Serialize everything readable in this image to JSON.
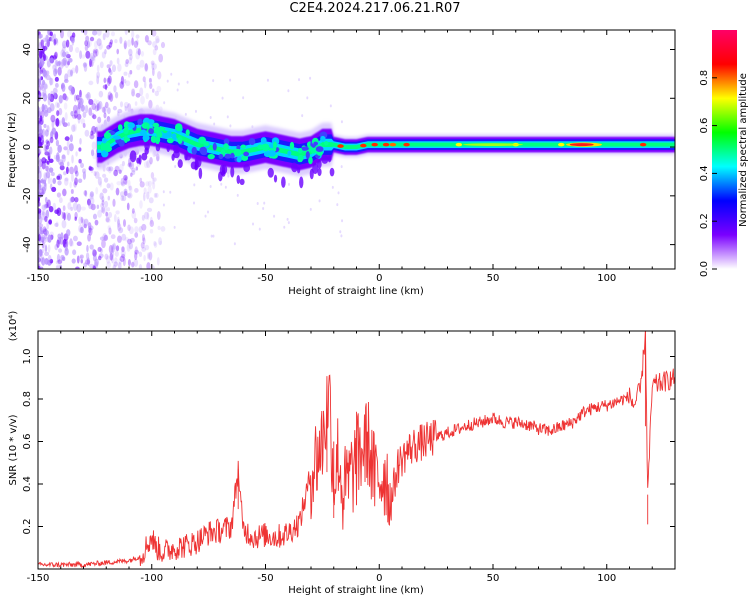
{
  "title": "C2E4.2024.217.06.21.R07",
  "chart_data": [
    {
      "type": "heatmap",
      "xlabel": "Height of straight line (km)",
      "ylabel": "Frequency (Hz)",
      "xlim": [
        -150,
        130
      ],
      "ylim": [
        -50,
        48
      ],
      "x_ticks": [
        "-150",
        "-100",
        "-50",
        "0",
        "50",
        "100"
      ],
      "y_ticks": [
        "40",
        "20",
        "0",
        "-20",
        "-40"
      ],
      "colorbar": {
        "label": "Normalized spectral amplitude",
        "range": [
          0.0,
          1.0
        ],
        "ticks": [
          "0.0",
          "0.2",
          "0.4",
          "0.6",
          "0.8"
        ],
        "colormap": [
          "#ffffff",
          "#7a00ff",
          "#0000ff",
          "#00ffff",
          "#00ff00",
          "#ffff00",
          "#ff0000",
          "#ff0066"
        ]
      },
      "ridge": {
        "x": [
          -122,
          -115,
          -110,
          -105,
          -100,
          -95,
          -90,
          -85,
          -80,
          -75,
          -70,
          -65,
          -60,
          -55,
          -50,
          -45,
          -40,
          -35,
          -30,
          -25,
          -20,
          -15,
          -10,
          -5,
          0,
          5,
          10,
          20,
          40,
          60,
          80,
          90,
          100,
          110,
          120,
          130
        ],
        "y": [
          0,
          4,
          6,
          7,
          7,
          6,
          5,
          3,
          1,
          0,
          -1,
          -2,
          -2,
          -1,
          0,
          -1,
          -2,
          -3,
          -2,
          1,
          1,
          0,
          0,
          1,
          1,
          1,
          1,
          1,
          1,
          1,
          1,
          1,
          1,
          1,
          1,
          1
        ]
      }
    },
    {
      "type": "line",
      "xlabel": "Height of straight line (km)",
      "ylabel": "SNR (10 * v/v)",
      "yscale_label": "(x10⁴)",
      "xlim": [
        -150,
        130
      ],
      "ylim": [
        0,
        1.12
      ],
      "x_ticks": [
        "-150",
        "-100",
        "-50",
        "0",
        "50",
        "100"
      ],
      "y_ticks": [
        "0.2",
        "0.4",
        "0.6",
        "0.8",
        "1.0"
      ],
      "series": [
        {
          "color": "#ee3333",
          "x": [
            -150,
            -140,
            -130,
            -120,
            -110,
            -105,
            -100,
            -98,
            -95,
            -90,
            -85,
            -80,
            -75,
            -70,
            -65,
            -62,
            -60,
            -55,
            -50,
            -45,
            -40,
            -35,
            -30,
            -25,
            -22,
            -20,
            -18,
            -16,
            -12,
            -8,
            -5,
            -2,
            0,
            3,
            5,
            8,
            10,
            12,
            15,
            20,
            25,
            30,
            35,
            40,
            45,
            50,
            55,
            60,
            65,
            70,
            75,
            80,
            85,
            90,
            95,
            100,
            105,
            110,
            112,
            115,
            117,
            118,
            120,
            125,
            130
          ],
          "y": [
            0.02,
            0.02,
            0.02,
            0.03,
            0.04,
            0.06,
            0.15,
            0.1,
            0.08,
            0.1,
            0.11,
            0.13,
            0.17,
            0.18,
            0.2,
            0.47,
            0.19,
            0.15,
            0.16,
            0.15,
            0.17,
            0.22,
            0.45,
            0.6,
            0.84,
            0.4,
            0.55,
            0.35,
            0.45,
            0.55,
            0.6,
            0.42,
            0.43,
            0.45,
            0.3,
            0.48,
            0.52,
            0.55,
            0.58,
            0.6,
            0.62,
            0.64,
            0.66,
            0.68,
            0.69,
            0.71,
            0.69,
            0.69,
            0.68,
            0.66,
            0.65,
            0.67,
            0.69,
            0.74,
            0.76,
            0.77,
            0.79,
            0.81,
            0.77,
            0.85,
            1.12,
            0.35,
            0.86,
            0.88,
            0.9
          ]
        }
      ]
    }
  ]
}
